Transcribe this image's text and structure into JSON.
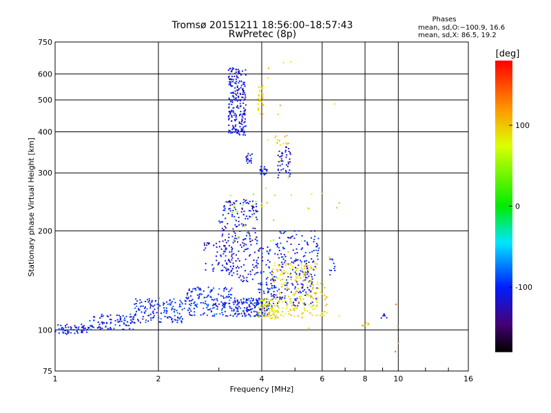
{
  "chart_data": {
    "type": "scatter",
    "title": "Tromsø 20151211 18:56:00–18:57:43",
    "subtitle": "RwPretec (8p)",
    "stats": {
      "heading": "Phases",
      "line1": "mean, sd,O:−100.9, 16.6",
      "line2": "mean, sd,X:  86.5, 19.2"
    },
    "xlabel": "Frequency [MHz]",
    "ylabel": "Stationary phase Virtual Height [km]",
    "x_scale": "log",
    "y_scale": "log",
    "xlim": [
      1,
      16
    ],
    "ylim": [
      75,
      750
    ],
    "x_ticks": [
      1,
      2,
      4,
      6,
      8,
      10,
      16
    ],
    "y_ticks": [
      75,
      100,
      200,
      300,
      400,
      500,
      600,
      750
    ],
    "grid": true,
    "colorbar": {
      "label": "[deg]",
      "range": [
        -180,
        180
      ],
      "ticks": [
        100,
        0,
        -100
      ]
    },
    "clusters": [
      {
        "fx": [
          1.0,
          1.25
        ],
        "hy": [
          97,
          104
        ],
        "phase": -110,
        "n": 60
      },
      {
        "fx": [
          1.25,
          1.7
        ],
        "hy": [
          100,
          112
        ],
        "phase": -105,
        "n": 90
      },
      {
        "fx": [
          1.7,
          2.4
        ],
        "hy": [
          105,
          125
        ],
        "phase": -100,
        "n": 140
      },
      {
        "fx": [
          2.4,
          3.3
        ],
        "hy": [
          110,
          135
        ],
        "phase": -100,
        "n": 160
      },
      {
        "fx": [
          3.3,
          4.2
        ],
        "hy": [
          110,
          125
        ],
        "phase": -105,
        "n": 160
      },
      {
        "fx": [
          4.2,
          5.8
        ],
        "hy": [
          118,
          150
        ],
        "phase": -110,
        "n": 120
      },
      {
        "fx": [
          2.7,
          3.3
        ],
        "hy": [
          150,
          185
        ],
        "phase": -115,
        "n": 50
      },
      {
        "fx": [
          3.0,
          3.9
        ],
        "hy": [
          140,
          250
        ],
        "phase": -115,
        "n": 220
      },
      {
        "fx": [
          3.9,
          4.4
        ],
        "hy": [
          125,
          180
        ],
        "phase": -110,
        "n": 60
      },
      {
        "fx": [
          4.4,
          5.9
        ],
        "hy": [
          150,
          200
        ],
        "phase": -110,
        "n": 110
      },
      {
        "fx": [
          3.9,
          4.5
        ],
        "hy": [
          108,
          125
        ],
        "phase": 85,
        "n": 90
      },
      {
        "fx": [
          4.5,
          6.2
        ],
        "hy": [
          110,
          140
        ],
        "phase": 90,
        "n": 120
      },
      {
        "fx": [
          4.3,
          5.8
        ],
        "hy": [
          140,
          160
        ],
        "phase": 95,
        "n": 70
      },
      {
        "fx": [
          3.2,
          3.6
        ],
        "hy": [
          390,
          630
        ],
        "phase": -115,
        "n": 230
      },
      {
        "fx": [
          3.6,
          3.75
        ],
        "hy": [
          320,
          345
        ],
        "phase": -110,
        "n": 18
      },
      {
        "fx": [
          3.9,
          4.05
        ],
        "hy": [
          450,
          560
        ],
        "phase": 95,
        "n": 32
      },
      {
        "fx": [
          3.95,
          4.15
        ],
        "hy": [
          295,
          315
        ],
        "phase": -110,
        "n": 20
      },
      {
        "fx": [
          4.45,
          4.85
        ],
        "hy": [
          290,
          360
        ],
        "phase": -115,
        "n": 45
      },
      {
        "fx": [
          4.4,
          4.8
        ],
        "hy": [
          360,
          390
        ],
        "phase": 95,
        "n": 12
      },
      {
        "fx": [
          4.0,
          6.8
        ],
        "hy": [
          100,
          700
        ],
        "phase": 90,
        "n": 30
      },
      {
        "fx": [
          3.2,
          5.5
        ],
        "hy": [
          180,
          260
        ],
        "phase": 60,
        "n": 20
      },
      {
        "fx": [
          6.3,
          6.6
        ],
        "hy": [
          145,
          165
        ],
        "phase": -105,
        "n": 10
      },
      {
        "fx": [
          7.7,
          8.2
        ],
        "hy": [
          102,
          106
        ],
        "phase": 100,
        "n": 6
      },
      {
        "fx": [
          8.8,
          9.3
        ],
        "hy": [
          108,
          112
        ],
        "phase": -110,
        "n": 8
      },
      {
        "fx": [
          9.7,
          10.0
        ],
        "hy": [
          85,
          160
        ],
        "phase": 130,
        "n": 4
      }
    ]
  }
}
